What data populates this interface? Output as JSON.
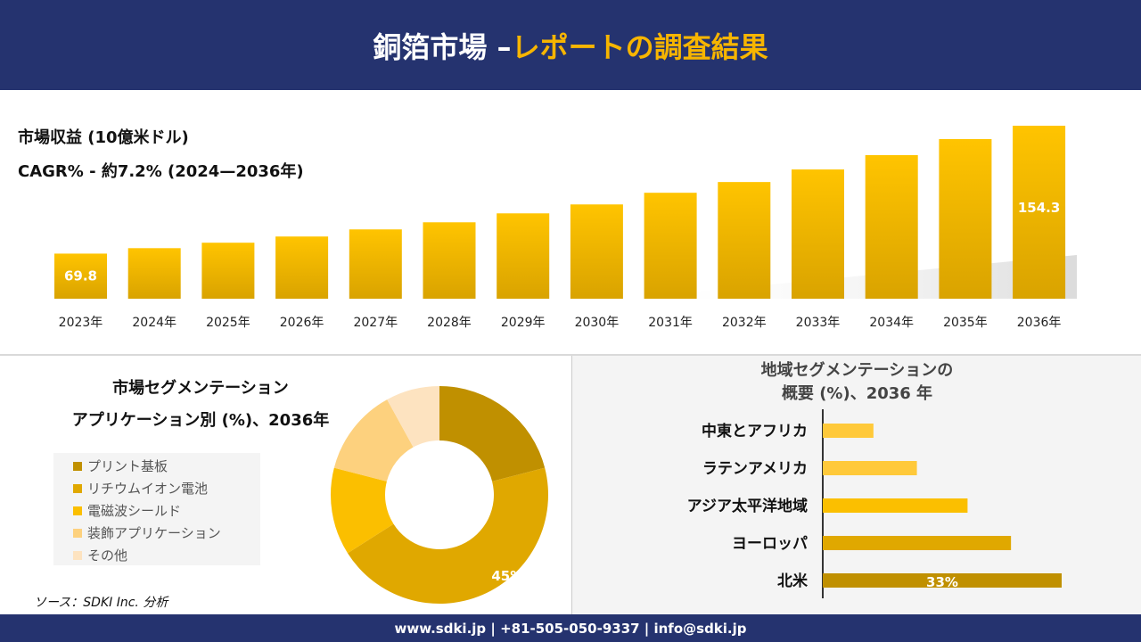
{
  "header": {
    "title_white": "銅箔市場 –",
    "title_yellow": "レポートの調査結果"
  },
  "revenue_label": "市場収益 (10億米ドル)",
  "cagr_label": "CAGR% - 約7.2% (2024—2036年)",
  "chart_data": [
    {
      "type": "bar",
      "categories": [
        "2023年",
        "2024年",
        "2025年",
        "2026年",
        "2027年",
        "2028年",
        "2029年",
        "2030年",
        "2031年",
        "2032年",
        "2033年",
        "2034年",
        "2035年",
        "2036年"
      ],
      "values": [
        69.8,
        73.4,
        77.0,
        81.1,
        85.8,
        90.5,
        96.4,
        102.3,
        110.0,
        117.1,
        125.4,
        134.9,
        145.5,
        154.3
      ],
      "data_labels": {
        "0": "69.8",
        "13": "154.3"
      },
      "ylim": [
        40,
        160
      ],
      "grid": false
    },
    {
      "type": "pie",
      "donut": true,
      "title": "市場セグメンテーション アプリケーション別 (%)、2036年",
      "categories": [
        "プリント基板",
        "リチウムイオン電池",
        "電磁波シールド",
        "装飾アプリケーション",
        "その他"
      ],
      "values": [
        21,
        45,
        13,
        13,
        8
      ],
      "colors": [
        "#c09000",
        "#e0a800",
        "#fbbf00",
        "#fdd17e",
        "#fde3c0"
      ],
      "data_labels": {
        "1": "45%"
      },
      "legend": "left"
    },
    {
      "type": "bar",
      "orientation": "horizontal",
      "title_line1": "地域セグメンテーションの",
      "title_line2": "概要 (%)、2036 年",
      "categories": [
        "中東とアフリカ",
        "ラテンアメリカ",
        "アジア太平洋地域",
        "ヨーロッパ",
        "北米"
      ],
      "values": [
        7,
        13,
        20,
        26,
        33
      ],
      "colors": [
        "#ffc93a",
        "#ffc93a",
        "#fbbf00",
        "#e0a800",
        "#c09000"
      ],
      "data_labels": {
        "4": "33%"
      }
    }
  ],
  "source": "ソース：SDKI Inc. 分析",
  "footer": "www.sdki.jp | +81-505-050-9337 | info@sdki.jp"
}
